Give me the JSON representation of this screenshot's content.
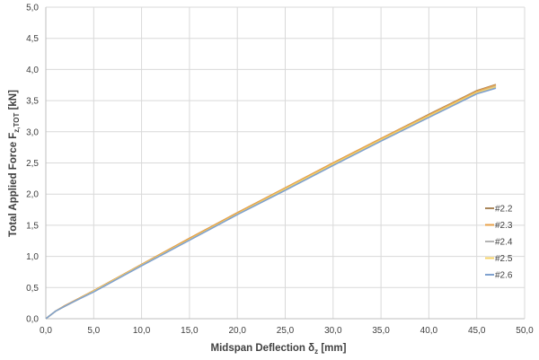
{
  "chart_data": {
    "type": "line",
    "xlabel": "Midspan Deflection δ",
    "xlabel_sub": "z",
    "xlabel_unit": " [mm]",
    "ylabel": "Total Applied Force F",
    "ylabel_sub": "z,TOT",
    "ylabel_unit": " [kN]",
    "xlim": [
      0,
      50
    ],
    "ylim": [
      0,
      5
    ],
    "xticks": [
      "0,0",
      "5,0",
      "10,0",
      "15,0",
      "20,0",
      "25,0",
      "30,0",
      "35,0",
      "40,0",
      "45,0",
      "50,0"
    ],
    "yticks": [
      "0,0",
      "0,5",
      "1,0",
      "1,5",
      "2,0",
      "2,5",
      "3,0",
      "3,5",
      "4,0",
      "4,5",
      "5,0"
    ],
    "grid": true,
    "legend_position": "right",
    "series": [
      {
        "name": "#2.2",
        "color": "#a9865a",
        "x": [
          0,
          1,
          2,
          3,
          5,
          10,
          15,
          20,
          25,
          30,
          35,
          40,
          45,
          47
        ],
        "y": [
          0,
          0.12,
          0.21,
          0.29,
          0.45,
          0.87,
          1.29,
          1.7,
          2.1,
          2.5,
          2.89,
          3.28,
          3.66,
          3.76
        ]
      },
      {
        "name": "#2.3",
        "color": "#e8a24a",
        "x": [
          0,
          1,
          2,
          3,
          5,
          10,
          15,
          20,
          25,
          30,
          35,
          40,
          45,
          47
        ],
        "y": [
          0,
          0.12,
          0.21,
          0.29,
          0.45,
          0.87,
          1.29,
          1.7,
          2.1,
          2.5,
          2.89,
          3.27,
          3.65,
          3.75
        ]
      },
      {
        "name": "#2.4",
        "color": "#b4b4b4",
        "x": [
          0,
          1,
          2,
          3,
          5,
          10,
          15,
          20,
          25,
          30,
          35,
          40,
          45,
          47
        ],
        "y": [
          0,
          0.12,
          0.2,
          0.28,
          0.44,
          0.86,
          1.27,
          1.68,
          2.08,
          2.48,
          2.87,
          3.25,
          3.63,
          3.73
        ]
      },
      {
        "name": "#2.5",
        "color": "#f5d36a",
        "x": [
          0,
          1,
          2,
          3,
          5,
          10,
          15,
          20,
          25,
          30,
          35,
          40,
          45,
          47
        ],
        "y": [
          0,
          0.12,
          0.2,
          0.28,
          0.44,
          0.86,
          1.27,
          1.68,
          2.08,
          2.48,
          2.87,
          3.25,
          3.63,
          3.72
        ]
      },
      {
        "name": "#2.6",
        "color": "#7fa1cf",
        "x": [
          0,
          1,
          2,
          3,
          5,
          10,
          15,
          20,
          25,
          30,
          35,
          40,
          45,
          47
        ],
        "y": [
          0,
          0.12,
          0.2,
          0.28,
          0.43,
          0.85,
          1.26,
          1.67,
          2.06,
          2.46,
          2.85,
          3.23,
          3.61,
          3.7
        ]
      }
    ]
  }
}
